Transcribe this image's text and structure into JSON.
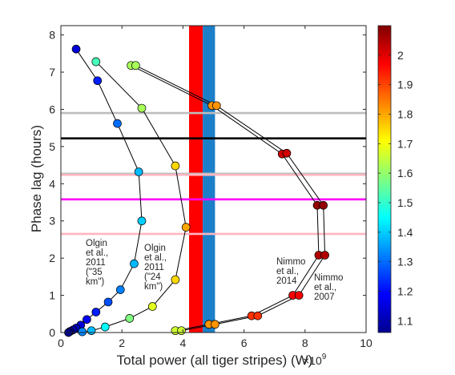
{
  "chart_data": {
    "type": "scatter",
    "xlabel": "Total power (all tiger stripes) (W)",
    "x_exponent_label": "×10",
    "x_exponent_power": "9",
    "ylabel": "Phase lag (hours)",
    "xlim": [
      0,
      10
    ],
    "ylim": [
      0,
      8.25
    ],
    "xticks": [
      "0",
      "2",
      "4",
      "6",
      "8",
      "10"
    ],
    "yticks": [
      "0",
      "1",
      "2",
      "3",
      "4",
      "5",
      "6",
      "7",
      "8"
    ],
    "grid": false,
    "colorbar": {
      "range": [
        1.06,
        2.1
      ],
      "ticks": [
        "1.1",
        "1.2",
        "1.3",
        "1.4",
        "1.5",
        "1.6",
        "1.7",
        "1.8",
        "1.9",
        "2"
      ],
      "colormap": "jet"
    },
    "vertical_bands": [
      {
        "x_from": 4.2,
        "x_to": 4.65,
        "color": "#ff0000"
      },
      {
        "x_from": 4.65,
        "x_to": 5.05,
        "color": "#1c7fc8"
      }
    ],
    "horizontal_lines": [
      {
        "y": 5.9,
        "color": "#bdbdbd"
      },
      {
        "y": 5.22,
        "color": "#000000"
      },
      {
        "y": 4.27,
        "color": "#bdbdbd"
      },
      {
        "y": 4.24,
        "color": "#ffb6c1"
      },
      {
        "y": 3.58,
        "color": "#ff00ff"
      },
      {
        "y": 2.65,
        "color": "#ffb6c1"
      }
    ],
    "series": [
      {
        "name": "Olgin et al., 2011 (\"35 km\")",
        "points": [
          {
            "x": 0.5,
            "y": 7.62,
            "c": 1.15
          },
          {
            "x": 1.2,
            "y": 6.77,
            "c": 1.22
          },
          {
            "x": 1.85,
            "y": 5.62,
            "c": 1.3
          },
          {
            "x": 2.55,
            "y": 4.32,
            "c": 1.38
          },
          {
            "x": 2.65,
            "y": 3.0,
            "c": 1.4
          },
          {
            "x": 2.4,
            "y": 1.85,
            "c": 1.38
          },
          {
            "x": 1.95,
            "y": 1.15,
            "c": 1.32
          },
          {
            "x": 1.55,
            "y": 0.82,
            "c": 1.27
          },
          {
            "x": 1.15,
            "y": 0.55,
            "c": 1.22
          },
          {
            "x": 0.85,
            "y": 0.35,
            "c": 1.18
          },
          {
            "x": 0.65,
            "y": 0.2,
            "c": 1.15
          },
          {
            "x": 0.5,
            "y": 0.12,
            "c": 1.12
          },
          {
            "x": 0.4,
            "y": 0.07,
            "c": 1.1
          },
          {
            "x": 0.3,
            "y": 0.03,
            "c": 1.08
          },
          {
            "x": 0.25,
            "y": 0.0,
            "c": 1.07
          }
        ]
      },
      {
        "name": "Olgin et al., 2011 (\"24 km\")",
        "points": [
          {
            "x": 1.15,
            "y": 7.28,
            "c": 1.52
          },
          {
            "x": 2.65,
            "y": 6.03,
            "c": 1.62
          },
          {
            "x": 3.75,
            "y": 4.48,
            "c": 1.75
          },
          {
            "x": 4.1,
            "y": 2.83,
            "c": 1.8
          },
          {
            "x": 3.75,
            "y": 1.42,
            "c": 1.75
          },
          {
            "x": 3.0,
            "y": 0.7,
            "c": 1.68
          },
          {
            "x": 2.25,
            "y": 0.38,
            "c": 1.58
          },
          {
            "x": 1.45,
            "y": 0.15,
            "c": 1.45
          },
          {
            "x": 1.0,
            "y": 0.05,
            "c": 1.38
          },
          {
            "x": 0.7,
            "y": 0.02,
            "c": 1.33
          }
        ]
      },
      {
        "name": "Nimmo et al., 2014",
        "points": [
          {
            "x": 2.3,
            "y": 7.18,
            "c": 1.62
          },
          {
            "x": 4.95,
            "y": 6.1,
            "c": 1.82
          },
          {
            "x": 7.25,
            "y": 4.8,
            "c": 2.02
          },
          {
            "x": 8.4,
            "y": 3.42,
            "c": 2.08
          },
          {
            "x": 8.45,
            "y": 2.08,
            "c": 2.05
          },
          {
            "x": 7.6,
            "y": 1.0,
            "c": 1.98
          },
          {
            "x": 6.25,
            "y": 0.45,
            "c": 1.92
          },
          {
            "x": 4.85,
            "y": 0.22,
            "c": 1.82
          },
          {
            "x": 3.75,
            "y": 0.05,
            "c": 1.66
          }
        ]
      },
      {
        "name": "Nimmo et al., 2007",
        "points": [
          {
            "x": 2.45,
            "y": 7.18,
            "c": 1.62
          },
          {
            "x": 5.1,
            "y": 6.1,
            "c": 1.82
          },
          {
            "x": 7.4,
            "y": 4.82,
            "c": 2.02
          },
          {
            "x": 8.6,
            "y": 3.42,
            "c": 2.08
          },
          {
            "x": 8.65,
            "y": 2.08,
            "c": 2.05
          },
          {
            "x": 7.8,
            "y": 1.0,
            "c": 1.98
          },
          {
            "x": 6.45,
            "y": 0.45,
            "c": 1.92
          },
          {
            "x": 5.05,
            "y": 0.22,
            "c": 1.82
          },
          {
            "x": 3.95,
            "y": 0.05,
            "c": 1.66
          }
        ]
      }
    ],
    "annotations": [
      {
        "id": "olgin35",
        "lines": [
          "Olgin",
          "et al.,",
          "2011",
          "(\"35",
          "km\")"
        ]
      },
      {
        "id": "olgin24",
        "lines": [
          "Olgin",
          "et al.,",
          "2011",
          "(\"24",
          "km\")"
        ]
      },
      {
        "id": "nimmo2014",
        "lines": [
          "Nimmo",
          "et al.,",
          "2014"
        ]
      },
      {
        "id": "nimmo2007",
        "lines": [
          "Nimmo",
          "et al.,",
          "2007"
        ]
      }
    ]
  }
}
